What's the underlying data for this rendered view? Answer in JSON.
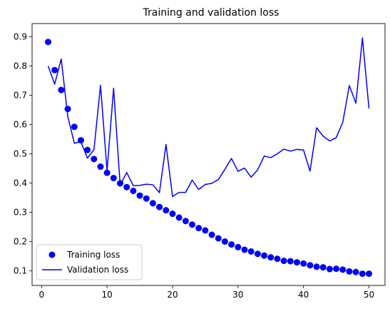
{
  "chart_data": {
    "type": "line",
    "title": "Training and validation loss",
    "xlabel": "",
    "ylabel": "",
    "xlim": [
      -1.45,
      52.45
    ],
    "ylim": [
      0.05,
      0.945
    ],
    "x_ticks": [
      0,
      10,
      20,
      30,
      40,
      50
    ],
    "y_ticks": [
      0.1,
      0.2,
      0.3,
      0.4,
      0.5,
      0.6,
      0.7,
      0.8,
      0.9
    ],
    "x_tick_labels": [
      "0",
      "10",
      "20",
      "30",
      "40",
      "50"
    ],
    "y_tick_labels": [
      "0.1",
      "0.2",
      "0.3",
      "0.4",
      "0.5",
      "0.6",
      "0.7",
      "0.8",
      "0.9"
    ],
    "grid": false,
    "legend_position": "lower-left",
    "x": [
      1,
      2,
      3,
      4,
      5,
      6,
      7,
      8,
      9,
      10,
      11,
      12,
      13,
      14,
      15,
      16,
      17,
      18,
      19,
      20,
      21,
      22,
      23,
      24,
      25,
      26,
      27,
      28,
      29,
      30,
      31,
      32,
      33,
      34,
      35,
      36,
      37,
      38,
      39,
      40,
      41,
      42,
      43,
      44,
      45,
      46,
      47,
      48,
      49,
      50
    ],
    "series": [
      {
        "name": "Training loss",
        "style": "markers",
        "color": "#0000ff",
        "values": [
          0.882,
          0.786,
          0.718,
          0.653,
          0.592,
          0.546,
          0.513,
          0.482,
          0.456,
          0.435,
          0.417,
          0.399,
          0.386,
          0.373,
          0.357,
          0.347,
          0.331,
          0.318,
          0.307,
          0.295,
          0.282,
          0.27,
          0.258,
          0.246,
          0.238,
          0.223,
          0.211,
          0.2,
          0.19,
          0.181,
          0.172,
          0.166,
          0.158,
          0.152,
          0.146,
          0.141,
          0.134,
          0.133,
          0.129,
          0.125,
          0.119,
          0.114,
          0.112,
          0.106,
          0.107,
          0.104,
          0.098,
          0.096,
          0.09,
          0.09
        ]
      },
      {
        "name": "Validation loss",
        "style": "line",
        "color": "#0000ff",
        "values": [
          0.8,
          0.738,
          0.824,
          0.628,
          0.536,
          0.541,
          0.485,
          0.514,
          0.734,
          0.442,
          0.724,
          0.393,
          0.436,
          0.391,
          0.392,
          0.396,
          0.394,
          0.367,
          0.532,
          0.354,
          0.368,
          0.368,
          0.41,
          0.378,
          0.395,
          0.399,
          0.412,
          0.447,
          0.484,
          0.44,
          0.451,
          0.42,
          0.445,
          0.492,
          0.487,
          0.5,
          0.516,
          0.509,
          0.515,
          0.513,
          0.441,
          0.589,
          0.56,
          0.544,
          0.555,
          0.608,
          0.733,
          0.673,
          0.896,
          0.655
        ]
      }
    ]
  }
}
